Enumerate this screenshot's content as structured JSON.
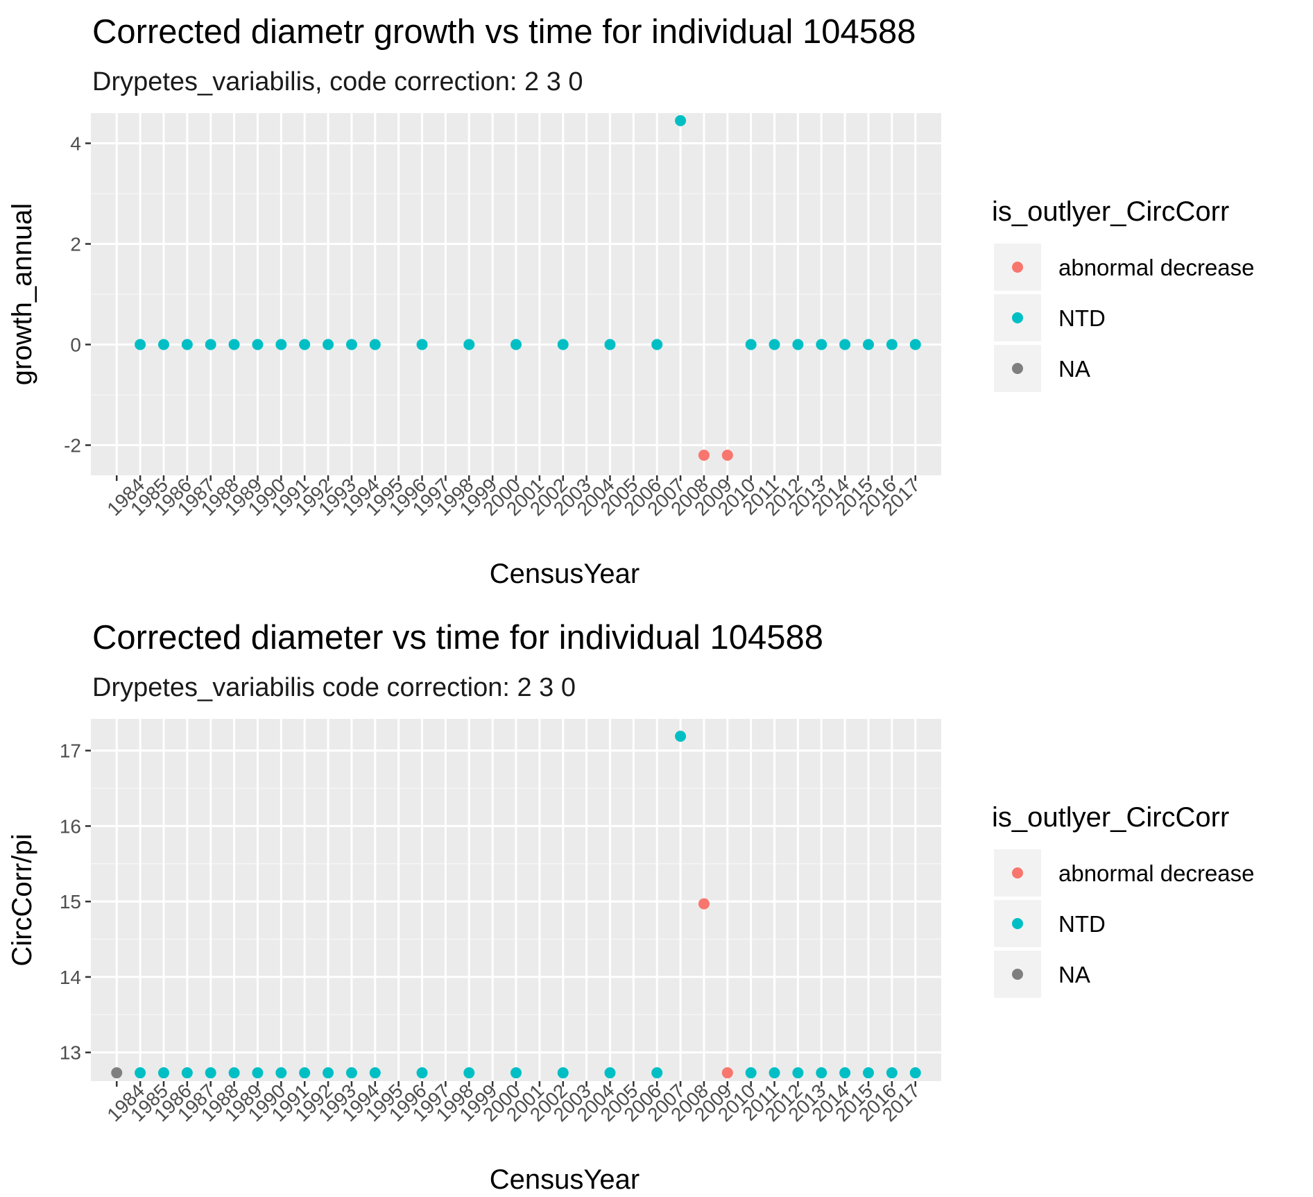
{
  "chart_data": [
    {
      "type": "scatter",
      "title": "Corrected diametr growth vs time for individual 104588",
      "subtitle": "Drypetes_variabilis, code correction: 2 3 0",
      "xlabel": "CensusYear",
      "ylabel": "growth_annual",
      "x_categories": [
        "",
        "1984",
        "1985",
        "1986",
        "1987",
        "1988",
        "1989",
        "1990",
        "1991",
        "1992",
        "1993",
        "1994",
        "1995",
        "1996",
        "1997",
        "1998",
        "1999",
        "2000",
        "2001",
        "2002",
        "2003",
        "2004",
        "2005",
        "2006",
        "2007",
        "2008",
        "2009",
        "2010",
        "2011",
        "2012",
        "2013",
        "2014",
        "2015",
        "2016",
        "2017"
      ],
      "ylim": [
        -2.6,
        4.6
      ],
      "yticks": [
        -2,
        0,
        2,
        4
      ],
      "ytick_labels": [
        "-2",
        "0",
        "2",
        "4"
      ],
      "grid": true,
      "legend": {
        "title": "is_outlyer_CircCorr",
        "position": "right",
        "entries": [
          {
            "label": "abnormal decrease",
            "color": "#F8766D"
          },
          {
            "label": "NTD",
            "color": "#00BFC4"
          },
          {
            "label": "NA",
            "color": "#7F7F7F"
          }
        ]
      },
      "points": [
        {
          "x": "1984",
          "y": 0,
          "group": "NTD"
        },
        {
          "x": "1985",
          "y": 0,
          "group": "NTD"
        },
        {
          "x": "1986",
          "y": 0,
          "group": "NTD"
        },
        {
          "x": "1987",
          "y": 0,
          "group": "NTD"
        },
        {
          "x": "1988",
          "y": 0,
          "group": "NTD"
        },
        {
          "x": "1989",
          "y": 0,
          "group": "NTD"
        },
        {
          "x": "1990",
          "y": 0,
          "group": "NTD"
        },
        {
          "x": "1991",
          "y": 0,
          "group": "NTD"
        },
        {
          "x": "1992",
          "y": 0,
          "group": "NTD"
        },
        {
          "x": "1993",
          "y": 0,
          "group": "NTD"
        },
        {
          "x": "1994",
          "y": 0,
          "group": "NTD"
        },
        {
          "x": "1996",
          "y": 0,
          "group": "NTD"
        },
        {
          "x": "1998",
          "y": 0,
          "group": "NTD"
        },
        {
          "x": "2000",
          "y": 0,
          "group": "NTD"
        },
        {
          "x": "2002",
          "y": 0,
          "group": "NTD"
        },
        {
          "x": "2004",
          "y": 0,
          "group": "NTD"
        },
        {
          "x": "2006",
          "y": 0,
          "group": "NTD"
        },
        {
          "x": "2007",
          "y": 4.45,
          "group": "NTD"
        },
        {
          "x": "2008",
          "y": -2.2,
          "group": "abnormal decrease"
        },
        {
          "x": "2009",
          "y": -2.2,
          "group": "abnormal decrease"
        },
        {
          "x": "2010",
          "y": 0,
          "group": "NTD"
        },
        {
          "x": "2011",
          "y": 0,
          "group": "NTD"
        },
        {
          "x": "2012",
          "y": 0,
          "group": "NTD"
        },
        {
          "x": "2013",
          "y": 0,
          "group": "NTD"
        },
        {
          "x": "2014",
          "y": 0,
          "group": "NTD"
        },
        {
          "x": "2015",
          "y": 0,
          "group": "NTD"
        },
        {
          "x": "2016",
          "y": 0,
          "group": "NTD"
        },
        {
          "x": "2017",
          "y": 0,
          "group": "NTD"
        }
      ]
    },
    {
      "type": "scatter",
      "title": "Corrected diameter vs time for individual 104588",
      "subtitle": "Drypetes_variabilis code correction: 2 3 0",
      "xlabel": "CensusYear",
      "ylabel": "CircCorr/pi",
      "x_categories": [
        "",
        "1984",
        "1985",
        "1986",
        "1987",
        "1988",
        "1989",
        "1990",
        "1991",
        "1992",
        "1993",
        "1994",
        "1995",
        "1996",
        "1997",
        "1998",
        "1999",
        "2000",
        "2001",
        "2002",
        "2003",
        "2004",
        "2005",
        "2006",
        "2007",
        "2008",
        "2009",
        "2010",
        "2011",
        "2012",
        "2013",
        "2014",
        "2015",
        "2016",
        "2017"
      ],
      "ylim": [
        12.62,
        17.42
      ],
      "yticks": [
        13,
        14,
        15,
        16,
        17
      ],
      "ytick_labels": [
        "13",
        "14",
        "15",
        "16",
        "17"
      ],
      "grid": true,
      "legend": {
        "title": "is_outlyer_CircCorr",
        "position": "right",
        "entries": [
          {
            "label": "abnormal decrease",
            "color": "#F8766D"
          },
          {
            "label": "NTD",
            "color": "#00BFC4"
          },
          {
            "label": "NA",
            "color": "#7F7F7F"
          }
        ]
      },
      "points": [
        {
          "x": "",
          "y": 12.73,
          "group": "NA"
        },
        {
          "x": "1984",
          "y": 12.73,
          "group": "NTD"
        },
        {
          "x": "1985",
          "y": 12.73,
          "group": "NTD"
        },
        {
          "x": "1986",
          "y": 12.73,
          "group": "NTD"
        },
        {
          "x": "1987",
          "y": 12.73,
          "group": "NTD"
        },
        {
          "x": "1988",
          "y": 12.73,
          "group": "NTD"
        },
        {
          "x": "1989",
          "y": 12.73,
          "group": "NTD"
        },
        {
          "x": "1990",
          "y": 12.73,
          "group": "NTD"
        },
        {
          "x": "1991",
          "y": 12.73,
          "group": "NTD"
        },
        {
          "x": "1992",
          "y": 12.73,
          "group": "NTD"
        },
        {
          "x": "1993",
          "y": 12.73,
          "group": "NTD"
        },
        {
          "x": "1994",
          "y": 12.73,
          "group": "NTD"
        },
        {
          "x": "1996",
          "y": 12.73,
          "group": "NTD"
        },
        {
          "x": "1998",
          "y": 12.73,
          "group": "NTD"
        },
        {
          "x": "2000",
          "y": 12.73,
          "group": "NTD"
        },
        {
          "x": "2002",
          "y": 12.73,
          "group": "NTD"
        },
        {
          "x": "2004",
          "y": 12.73,
          "group": "NTD"
        },
        {
          "x": "2006",
          "y": 12.73,
          "group": "NTD"
        },
        {
          "x": "2007",
          "y": 17.19,
          "group": "NTD"
        },
        {
          "x": "2008",
          "y": 14.97,
          "group": "abnormal decrease"
        },
        {
          "x": "2009",
          "y": 12.73,
          "group": "abnormal decrease"
        },
        {
          "x": "2010",
          "y": 12.73,
          "group": "NTD"
        },
        {
          "x": "2011",
          "y": 12.73,
          "group": "NTD"
        },
        {
          "x": "2012",
          "y": 12.73,
          "group": "NTD"
        },
        {
          "x": "2013",
          "y": 12.73,
          "group": "NTD"
        },
        {
          "x": "2014",
          "y": 12.73,
          "group": "NTD"
        },
        {
          "x": "2015",
          "y": 12.73,
          "group": "NTD"
        },
        {
          "x": "2016",
          "y": 12.73,
          "group": "NTD"
        },
        {
          "x": "2017",
          "y": 12.73,
          "group": "NTD"
        }
      ]
    }
  ]
}
